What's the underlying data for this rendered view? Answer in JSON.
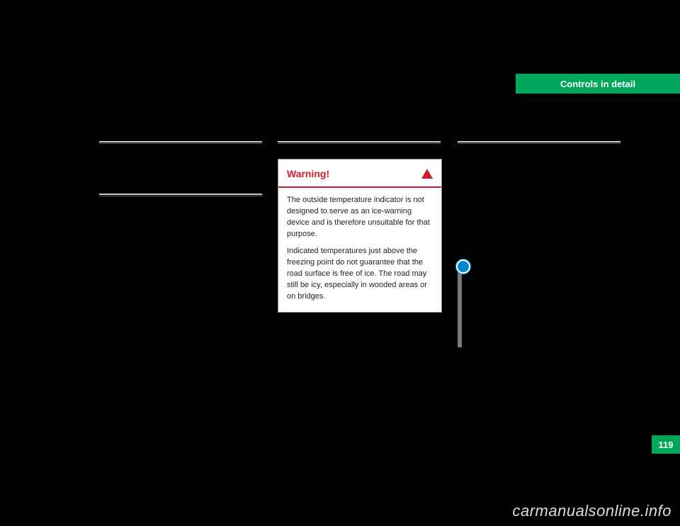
{
  "section_tab": "Controls in detail",
  "page_number": "119",
  "col1": {},
  "col2": {
    "warning": {
      "title": "Warning!",
      "p1": "The outside temperature indicator is not designed to serve as an ice-warning device and is therefore unsuitable for that purpose.",
      "p2": "Indicated temperatures just above the freezing point do not guarantee that the road surface is free of ice. The road may still be icy, especially in wooded areas or on bridges."
    }
  },
  "col3": {},
  "watermark": "carmanualsonline.info"
}
